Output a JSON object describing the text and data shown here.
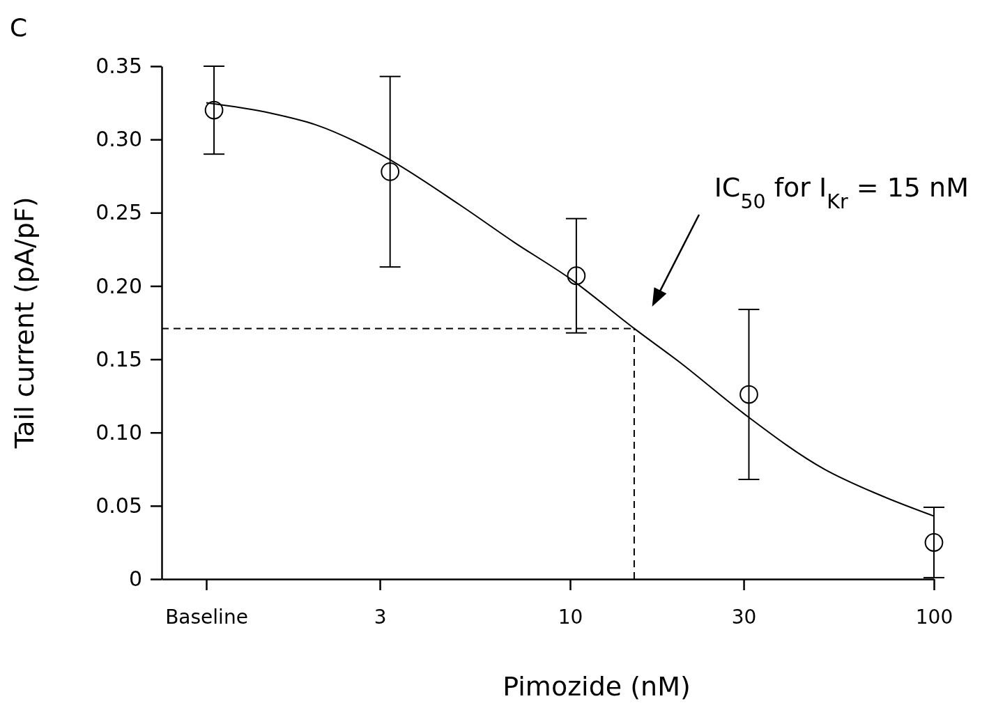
{
  "chart_data": {
    "type": "scatter",
    "title": "C",
    "xlabel": "Pimozide (nM)",
    "ylabel": "Tail current (pA/pF)",
    "log": "x",
    "x": [
      1.05,
      3.2,
      10.4,
      31,
      100
    ],
    "series": [
      {
        "color": "#000000",
        "values": [
          0.32,
          0.278,
          0.207,
          0.126,
          0.025
        ],
        "errors": [
          [
            0.29,
            0.35
          ],
          [
            0.213,
            0.343
          ],
          [
            0.168,
            0.246
          ],
          [
            0.068,
            0.184
          ],
          [
            0.001,
            0.049
          ]
        ]
      },
      {
        "type": "line",
        "marker": "none",
        "color": "#000000",
        "x": [
          1,
          1.5,
          2,
          3,
          5,
          7,
          10,
          15,
          20,
          30,
          50,
          70,
          100
        ],
        "values": [
          0.325,
          0.318,
          0.31,
          0.29,
          0.255,
          0.23,
          0.205,
          0.171,
          0.148,
          0.113,
          0.075,
          0.058,
          0.043
        ]
      }
    ],
    "xlim": [
      0.754,
      100
    ],
    "xticks": [
      {
        "value": 1,
        "label": "Baseline"
      },
      3,
      10,
      30,
      100
    ],
    "ylim": [
      0,
      0.35
    ],
    "yticks": [
      {
        "value": 0,
        "label": "0"
      },
      {
        "value": 0.05,
        "label": "0.05"
      },
      {
        "value": 0.1,
        "label": "0.10"
      },
      {
        "value": 0.15,
        "label": "0.15"
      },
      {
        "value": 0.2,
        "label": "0.20"
      },
      {
        "value": 0.25,
        "label": "0.25"
      },
      {
        "value": 0.3,
        "label": "0.30"
      },
      {
        "value": 0.35,
        "label": "0.35"
      }
    ],
    "ref_lines": [
      {
        "axis": "y",
        "value": 0.171,
        "line_style": "dashed"
      },
      {
        "axis": "x",
        "value": 15,
        "line_style": "dashed"
      }
    ],
    "annotations": [
      "IC$_{50}$ for I$_{Kr}$ = 15 nM"
    ],
    "marker": "circle",
    "grid": false
  }
}
